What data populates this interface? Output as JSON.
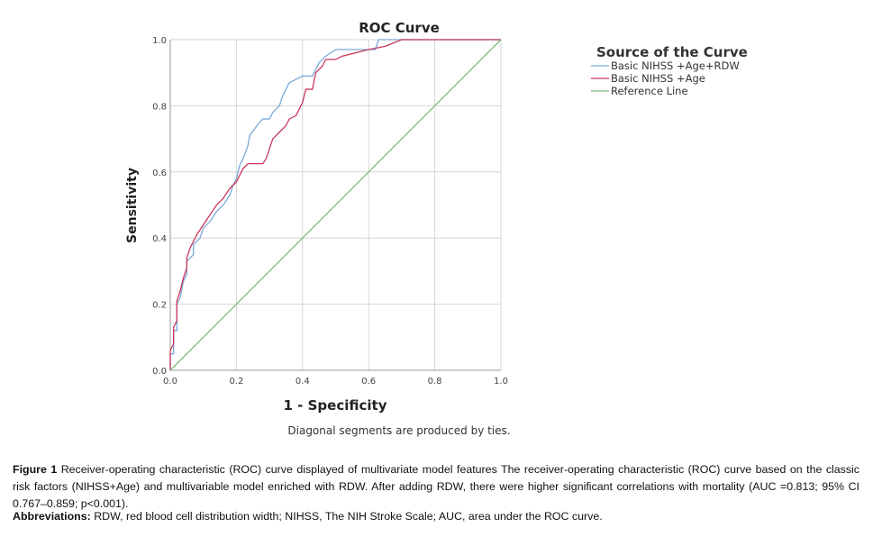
{
  "chart_data": {
    "type": "line",
    "title": "ROC Curve",
    "xlabel": "1 - Specificity",
    "ylabel": "Sensitivity",
    "xlim": [
      0,
      1
    ],
    "ylim": [
      0,
      1
    ],
    "xticks": [
      "0.0",
      "0.2",
      "0.4",
      "0.6",
      "0.8",
      "1.0"
    ],
    "yticks": [
      "0.0",
      "0.2",
      "0.4",
      "0.6",
      "0.8",
      "1.0"
    ],
    "grid": true,
    "legend_title": "Source of the Curve",
    "legend_position": "right",
    "footnote": "Diagonal segments are produced by ties.",
    "series": [
      {
        "name": "Basic NIHSS +Age+RDW",
        "color": "#7ba7d9",
        "points": [
          [
            0,
            0
          ],
          [
            0,
            0.05
          ],
          [
            0.01,
            0.05
          ],
          [
            0.01,
            0.12
          ],
          [
            0.02,
            0.12
          ],
          [
            0.02,
            0.2
          ],
          [
            0.03,
            0.22
          ],
          [
            0.04,
            0.27
          ],
          [
            0.05,
            0.29
          ],
          [
            0.05,
            0.33
          ],
          [
            0.07,
            0.35
          ],
          [
            0.07,
            0.38
          ],
          [
            0.09,
            0.4
          ],
          [
            0.1,
            0.43
          ],
          [
            0.12,
            0.45
          ],
          [
            0.14,
            0.48
          ],
          [
            0.16,
            0.5
          ],
          [
            0.18,
            0.53
          ],
          [
            0.19,
            0.56
          ],
          [
            0.2,
            0.58
          ],
          [
            0.21,
            0.62
          ],
          [
            0.22,
            0.64
          ],
          [
            0.235,
            0.68
          ],
          [
            0.24,
            0.71
          ],
          [
            0.255,
            0.73
          ],
          [
            0.27,
            0.75
          ],
          [
            0.28,
            0.76
          ],
          [
            0.3,
            0.76
          ],
          [
            0.31,
            0.78
          ],
          [
            0.33,
            0.8
          ],
          [
            0.34,
            0.83
          ],
          [
            0.35,
            0.85
          ],
          [
            0.36,
            0.87
          ],
          [
            0.38,
            0.88
          ],
          [
            0.4,
            0.89
          ],
          [
            0.43,
            0.89
          ],
          [
            0.44,
            0.91
          ],
          [
            0.45,
            0.93
          ],
          [
            0.47,
            0.95
          ],
          [
            0.5,
            0.97
          ],
          [
            0.62,
            0.97
          ],
          [
            0.63,
            1
          ],
          [
            1,
            1
          ]
        ]
      },
      {
        "name": "Basic NIHSS +Age",
        "color": "#c8385a",
        "points": [
          [
            0,
            0
          ],
          [
            0,
            0.06
          ],
          [
            0.01,
            0.08
          ],
          [
            0.01,
            0.13
          ],
          [
            0.02,
            0.15
          ],
          [
            0.02,
            0.21
          ],
          [
            0.03,
            0.24
          ],
          [
            0.04,
            0.28
          ],
          [
            0.05,
            0.31
          ],
          [
            0.05,
            0.34
          ],
          [
            0.06,
            0.37
          ],
          [
            0.08,
            0.41
          ],
          [
            0.1,
            0.44
          ],
          [
            0.12,
            0.47
          ],
          [
            0.14,
            0.5
          ],
          [
            0.16,
            0.52
          ],
          [
            0.18,
            0.55
          ],
          [
            0.2,
            0.57
          ],
          [
            0.21,
            0.59
          ],
          [
            0.22,
            0.61
          ],
          [
            0.235,
            0.625
          ],
          [
            0.28,
            0.625
          ],
          [
            0.29,
            0.64
          ],
          [
            0.3,
            0.67
          ],
          [
            0.31,
            0.7
          ],
          [
            0.33,
            0.72
          ],
          [
            0.35,
            0.74
          ],
          [
            0.36,
            0.76
          ],
          [
            0.38,
            0.77
          ],
          [
            0.39,
            0.79
          ],
          [
            0.4,
            0.81
          ],
          [
            0.41,
            0.85
          ],
          [
            0.43,
            0.85
          ],
          [
            0.44,
            0.9
          ],
          [
            0.46,
            0.92
          ],
          [
            0.47,
            0.94
          ],
          [
            0.5,
            0.94
          ],
          [
            0.52,
            0.95
          ],
          [
            0.6,
            0.97
          ],
          [
            0.65,
            0.98
          ],
          [
            0.7,
            1
          ],
          [
            1,
            1
          ]
        ]
      },
      {
        "name": "Reference Line",
        "color": "#7fb77e",
        "points": [
          [
            0,
            0
          ],
          [
            1,
            1
          ]
        ]
      }
    ]
  },
  "caption": {
    "label": "Figure 1",
    "text": " Receiver-operating characteristic (ROC) curve displayed of multivariate model features The receiver-operating characteristic (ROC) curve based on the classic risk factors (NIHSS+Age) and multivariable model enriched with RDW. After adding RDW, there were higher significant correlations with mortality (AUC =0.813; 95% CI 0.767–0.859; p<0.001).",
    "abbr_label": "Abbreviations:",
    "abbr_text": " RDW, red blood cell distribution width; NIHSS, The NIH Stroke Scale; AUC, area under the ROC curve."
  }
}
